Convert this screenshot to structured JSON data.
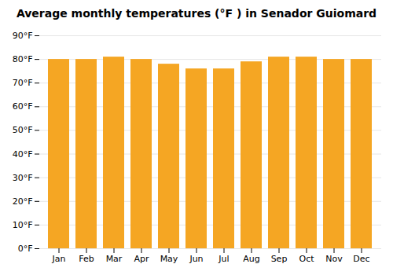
{
  "chart_data": {
    "type": "bar",
    "title": "Average monthly temperatures (°F ) in Senador Guiomard",
    "categories": [
      "Jan",
      "Feb",
      "Mar",
      "Apr",
      "May",
      "Jun",
      "Jul",
      "Aug",
      "Sep",
      "Oct",
      "Nov",
      "Dec"
    ],
    "values": [
      80,
      80,
      81,
      80,
      78,
      76,
      76,
      79,
      81,
      81,
      80,
      80
    ],
    "color": "#F5A623",
    "ylim": [
      0,
      90
    ],
    "yticks": [
      {
        "value": 0,
        "label": "0°F"
      },
      {
        "value": 10,
        "label": "10°F"
      },
      {
        "value": 20,
        "label": "20°F"
      },
      {
        "value": 30,
        "label": "30°F"
      },
      {
        "value": 40,
        "label": "40°F"
      },
      {
        "value": 50,
        "label": "50°F"
      },
      {
        "value": 60,
        "label": "60°F"
      },
      {
        "value": 70,
        "label": "70°F"
      },
      {
        "value": 80,
        "label": "80°F"
      },
      {
        "value": 90,
        "label": "90°F"
      }
    ],
    "grid": true
  }
}
